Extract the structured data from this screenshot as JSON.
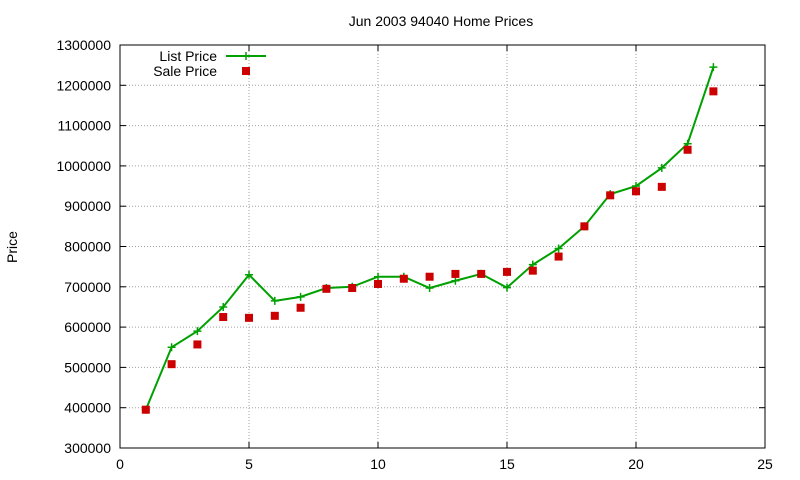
{
  "chart_data": {
    "type": "line",
    "title": "Jun 2003 94040 Home Prices",
    "xlabel": "",
    "ylabel": "Price",
    "xlim": [
      0,
      25
    ],
    "ylim": [
      300000,
      1300000
    ],
    "xticks": [
      0,
      5,
      10,
      15,
      20,
      25
    ],
    "yticks": [
      300000,
      400000,
      500000,
      600000,
      700000,
      800000,
      900000,
      1000000,
      1100000,
      1200000,
      1300000
    ],
    "grid": true,
    "legend_position": "top-left",
    "series": [
      {
        "name": "List Price",
        "style": "line-with-plus-markers",
        "color": "#00a000",
        "x": [
          1,
          2,
          3,
          4,
          5,
          6,
          7,
          8,
          9,
          10,
          11,
          12,
          13,
          14,
          15,
          16,
          17,
          18,
          19,
          20,
          21,
          22,
          23
        ],
        "y": [
          395000,
          550000,
          590000,
          650000,
          730000,
          665000,
          675000,
          697000,
          700000,
          725000,
          725000,
          697000,
          715000,
          732000,
          698000,
          755000,
          795000,
          850000,
          930000,
          950000,
          995000,
          1055000,
          1245000
        ]
      },
      {
        "name": "Sale Price",
        "style": "square-markers",
        "color": "#cc0000",
        "x": [
          1,
          2,
          3,
          4,
          5,
          6,
          7,
          8,
          9,
          10,
          11,
          12,
          13,
          14,
          15,
          16,
          17,
          18,
          19,
          20,
          21,
          22,
          23
        ],
        "y": [
          395000,
          508000,
          557000,
          625000,
          623000,
          628000,
          648000,
          695000,
          697000,
          707000,
          720000,
          725000,
          732000,
          732000,
          737000,
          740000,
          775000,
          850000,
          927000,
          937000,
          948000,
          1040000,
          1185000
        ]
      }
    ]
  }
}
